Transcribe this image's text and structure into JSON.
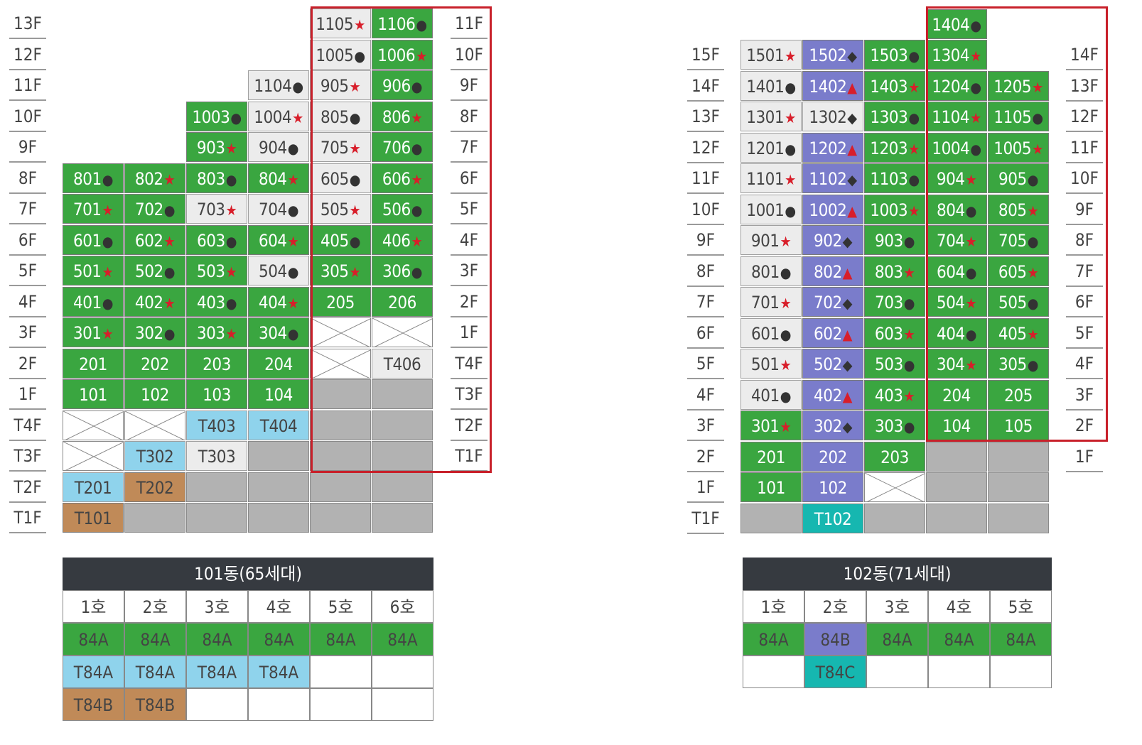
{
  "colors": {
    "g": "#3aa640",
    "w": "#ececec",
    "p": "#7a7ccb",
    "b": "#8fd3ec",
    "t": "#16b7b0",
    "o": "#c08a58",
    "s": "#b2b2b2",
    "red": "#d81e2a"
  },
  "building101": {
    "left_floors": [
      "13F",
      "12F",
      "11F",
      "10F",
      "9F",
      "8F",
      "7F",
      "6F",
      "5F",
      "4F",
      "3F",
      "2F",
      "1F",
      "T4F",
      "T3F",
      "T2F",
      "T1F"
    ],
    "right_floors": [
      "11F",
      "10F",
      "9F",
      "8F",
      "7F",
      "6F",
      "5F",
      "4F",
      "3F",
      "2F",
      "1F",
      "T4F",
      "T3F",
      "T2F",
      "T1F"
    ],
    "cols": [
      [
        null,
        null,
        null,
        null,
        null,
        {
          "n": "801",
          "m": "dot",
          "c": "g"
        },
        {
          "n": "701",
          "m": "star",
          "c": "g"
        },
        {
          "n": "601",
          "m": "dot",
          "c": "g"
        },
        {
          "n": "501",
          "m": "star",
          "c": "g"
        },
        {
          "n": "401",
          "m": "dot",
          "c": "g"
        },
        {
          "n": "301",
          "m": "star",
          "c": "g"
        },
        {
          "n": "201",
          "c": "g"
        },
        {
          "n": "101",
          "c": "g"
        },
        {
          "c": "x"
        },
        {
          "c": "x"
        },
        {
          "n": "T201",
          "c": "b"
        },
        {
          "n": "T101",
          "c": "o"
        }
      ],
      [
        null,
        null,
        null,
        null,
        null,
        {
          "n": "802",
          "m": "star",
          "c": "g"
        },
        {
          "n": "702",
          "m": "dot",
          "c": "g"
        },
        {
          "n": "602",
          "m": "star",
          "c": "g"
        },
        {
          "n": "502",
          "m": "dot",
          "c": "g"
        },
        {
          "n": "402",
          "m": "star",
          "c": "g"
        },
        {
          "n": "302",
          "m": "dot",
          "c": "g"
        },
        {
          "n": "202",
          "c": "g"
        },
        {
          "n": "102",
          "c": "g"
        },
        {
          "c": "x"
        },
        {
          "n": "T302",
          "c": "b"
        },
        {
          "n": "T202",
          "c": "o"
        },
        {
          "c": "s"
        }
      ],
      [
        null,
        null,
        null,
        {
          "n": "1003",
          "m": "dot",
          "c": "g"
        },
        {
          "n": "903",
          "m": "star",
          "c": "g"
        },
        {
          "n": "803",
          "m": "dot",
          "c": "g"
        },
        {
          "n": "703",
          "m": "star",
          "c": "w"
        },
        {
          "n": "603",
          "m": "dot",
          "c": "g"
        },
        {
          "n": "503",
          "m": "star",
          "c": "g"
        },
        {
          "n": "403",
          "m": "dot",
          "c": "g"
        },
        {
          "n": "303",
          "m": "star",
          "c": "g"
        },
        {
          "n": "203",
          "c": "g"
        },
        {
          "n": "103",
          "c": "g"
        },
        {
          "n": "T403",
          "c": "b"
        },
        {
          "n": "T303",
          "c": "w"
        },
        {
          "c": "s"
        },
        {
          "c": "s"
        }
      ],
      [
        null,
        null,
        {
          "n": "1104",
          "m": "dot",
          "c": "w"
        },
        {
          "n": "1004",
          "m": "star",
          "c": "w"
        },
        {
          "n": "904",
          "m": "dot",
          "c": "w"
        },
        {
          "n": "804",
          "m": "star",
          "c": "g"
        },
        {
          "n": "704",
          "m": "dot",
          "c": "w"
        },
        {
          "n": "604",
          "m": "star",
          "c": "g"
        },
        {
          "n": "504",
          "m": "dot",
          "c": "w"
        },
        {
          "n": "404",
          "m": "star",
          "c": "g"
        },
        {
          "n": "304",
          "m": "dot",
          "c": "g"
        },
        {
          "n": "204",
          "c": "g"
        },
        {
          "n": "104",
          "c": "g"
        },
        {
          "n": "T404",
          "c": "b"
        },
        {
          "c": "s"
        },
        {
          "c": "s"
        },
        {
          "c": "s"
        }
      ],
      [
        {
          "n": "1105",
          "m": "star",
          "c": "w"
        },
        {
          "n": "1005",
          "m": "dot",
          "c": "w"
        },
        {
          "n": "905",
          "m": "star",
          "c": "w"
        },
        {
          "n": "805",
          "m": "dot",
          "c": "w"
        },
        {
          "n": "705",
          "m": "star",
          "c": "w"
        },
        {
          "n": "605",
          "m": "dot",
          "c": "w"
        },
        {
          "n": "505",
          "m": "star",
          "c": "w"
        },
        {
          "n": "405",
          "m": "dot",
          "c": "g"
        },
        {
          "n": "305",
          "m": "star",
          "c": "g"
        },
        {
          "n": "205",
          "c": "g"
        },
        {
          "c": "x"
        },
        {
          "c": "x"
        },
        {
          "c": "s"
        },
        {
          "c": "s"
        },
        {
          "c": "s"
        },
        {
          "c": "s"
        },
        {
          "c": "s"
        }
      ],
      [
        {
          "n": "1106",
          "m": "dot",
          "c": "g"
        },
        {
          "n": "1006",
          "m": "star",
          "c": "g"
        },
        {
          "n": "906",
          "m": "dot",
          "c": "g"
        },
        {
          "n": "806",
          "m": "star",
          "c": "g"
        },
        {
          "n": "706",
          "m": "dot",
          "c": "g"
        },
        {
          "n": "606",
          "m": "star",
          "c": "g"
        },
        {
          "n": "506",
          "m": "dot",
          "c": "g"
        },
        {
          "n": "406",
          "m": "star",
          "c": "g"
        },
        {
          "n": "306",
          "m": "dot",
          "c": "g"
        },
        {
          "n": "206",
          "c": "g"
        },
        {
          "c": "x"
        },
        {
          "n": "T406",
          "c": "w"
        },
        {
          "c": "s"
        },
        {
          "c": "s"
        },
        {
          "c": "s"
        },
        {
          "c": "s"
        },
        {
          "c": "s"
        }
      ]
    ],
    "legend": {
      "title": "101동(65세대)",
      "header": [
        "1호",
        "2호",
        "3호",
        "4호",
        "5호",
        "6호"
      ],
      "rows": [
        [
          {
            "v": "84A",
            "c": "g"
          },
          {
            "v": "84A",
            "c": "g"
          },
          {
            "v": "84A",
            "c": "g"
          },
          {
            "v": "84A",
            "c": "g"
          },
          {
            "v": "84A",
            "c": "g"
          },
          {
            "v": "84A",
            "c": "g"
          }
        ],
        [
          {
            "v": "T84A",
            "c": "b"
          },
          {
            "v": "T84A",
            "c": "b"
          },
          {
            "v": "T84A",
            "c": "b"
          },
          {
            "v": "T84A",
            "c": "b"
          },
          {
            "v": "",
            "c": ""
          },
          {
            "v": "",
            "c": ""
          }
        ],
        [
          {
            "v": "T84B",
            "c": "o"
          },
          {
            "v": "T84B",
            "c": "o"
          },
          {
            "v": "",
            "c": ""
          },
          {
            "v": "",
            "c": ""
          },
          {
            "v": "",
            "c": ""
          },
          {
            "v": "",
            "c": ""
          }
        ]
      ]
    }
  },
  "building102": {
    "left_floors": [
      "15F",
      "14F",
      "13F",
      "12F",
      "11F",
      "10F",
      "9F",
      "8F",
      "7F",
      "6F",
      "5F",
      "4F",
      "3F",
      "2F",
      "1F",
      "T1F"
    ],
    "right_floors": [
      "14F",
      "13F",
      "12F",
      "11F",
      "10F",
      "9F",
      "8F",
      "7F",
      "6F",
      "5F",
      "4F",
      "3F",
      "2F",
      "1F"
    ],
    "cols": [
      [
        null,
        {
          "n": "1501",
          "m": "star",
          "c": "w"
        },
        {
          "n": "1401",
          "m": "dot",
          "c": "w"
        },
        {
          "n": "1301",
          "m": "star",
          "c": "w"
        },
        {
          "n": "1201",
          "m": "dot",
          "c": "w"
        },
        {
          "n": "1101",
          "m": "star",
          "c": "w"
        },
        {
          "n": "1001",
          "m": "dot",
          "c": "w"
        },
        {
          "n": "901",
          "m": "star",
          "c": "w"
        },
        {
          "n": "801",
          "m": "dot",
          "c": "w"
        },
        {
          "n": "701",
          "m": "star",
          "c": "w"
        },
        {
          "n": "601",
          "m": "dot",
          "c": "w"
        },
        {
          "n": "501",
          "m": "star",
          "c": "w"
        },
        {
          "n": "401",
          "m": "dot",
          "c": "w"
        },
        {
          "n": "301",
          "m": "star",
          "c": "g"
        },
        {
          "n": "201",
          "c": "g"
        },
        {
          "n": "101",
          "c": "g"
        },
        {
          "c": "s"
        }
      ],
      [
        null,
        {
          "n": "1502",
          "m": "dia",
          "c": "p"
        },
        {
          "n": "1402",
          "m": "tri",
          "c": "p"
        },
        {
          "n": "1302",
          "m": "dia",
          "c": "w"
        },
        {
          "n": "1202",
          "m": "tri",
          "c": "p"
        },
        {
          "n": "1102",
          "m": "dia",
          "c": "p"
        },
        {
          "n": "1002",
          "m": "tri",
          "c": "p"
        },
        {
          "n": "902",
          "m": "dia",
          "c": "p"
        },
        {
          "n": "802",
          "m": "tri",
          "c": "p"
        },
        {
          "n": "702",
          "m": "dia",
          "c": "p"
        },
        {
          "n": "602",
          "m": "tri",
          "c": "p"
        },
        {
          "n": "502",
          "m": "dia",
          "c": "p"
        },
        {
          "n": "402",
          "m": "tri",
          "c": "p"
        },
        {
          "n": "302",
          "m": "dia",
          "c": "p"
        },
        {
          "n": "202",
          "c": "p"
        },
        {
          "n": "102",
          "c": "p"
        },
        {
          "n": "T102",
          "c": "t"
        }
      ],
      [
        null,
        {
          "n": "1503",
          "m": "dot",
          "c": "g"
        },
        {
          "n": "1403",
          "m": "star",
          "c": "g"
        },
        {
          "n": "1303",
          "m": "dot",
          "c": "g"
        },
        {
          "n": "1203",
          "m": "star",
          "c": "g"
        },
        {
          "n": "1103",
          "m": "dot",
          "c": "g"
        },
        {
          "n": "1003",
          "m": "star",
          "c": "g"
        },
        {
          "n": "903",
          "m": "dot",
          "c": "g"
        },
        {
          "n": "803",
          "m": "star",
          "c": "g"
        },
        {
          "n": "703",
          "m": "dot",
          "c": "g"
        },
        {
          "n": "603",
          "m": "star",
          "c": "g"
        },
        {
          "n": "503",
          "m": "dot",
          "c": "g"
        },
        {
          "n": "403",
          "m": "star",
          "c": "g"
        },
        {
          "n": "303",
          "m": "dot",
          "c": "g"
        },
        {
          "n": "203",
          "c": "g"
        },
        {
          "c": "x"
        },
        {
          "c": "s"
        }
      ],
      [
        {
          "n": "1404",
          "m": "dot",
          "c": "g"
        },
        {
          "n": "1304",
          "m": "star",
          "c": "g"
        },
        {
          "n": "1204",
          "m": "dot",
          "c": "g"
        },
        {
          "n": "1104",
          "m": "star",
          "c": "g"
        },
        {
          "n": "1004",
          "m": "dot",
          "c": "g"
        },
        {
          "n": "904",
          "m": "star",
          "c": "g"
        },
        {
          "n": "804",
          "m": "dot",
          "c": "g"
        },
        {
          "n": "704",
          "m": "star",
          "c": "g"
        },
        {
          "n": "604",
          "m": "dot",
          "c": "g"
        },
        {
          "n": "504",
          "m": "star",
          "c": "g"
        },
        {
          "n": "404",
          "m": "dot",
          "c": "g"
        },
        {
          "n": "304",
          "m": "star",
          "c": "g"
        },
        {
          "n": "204",
          "c": "g"
        },
        {
          "n": "104",
          "c": "g"
        },
        {
          "c": "s"
        },
        {
          "c": "s"
        },
        {
          "c": "s"
        }
      ],
      [
        null,
        null,
        {
          "n": "1205",
          "m": "star",
          "c": "g"
        },
        {
          "n": "1105",
          "m": "dot",
          "c": "g"
        },
        {
          "n": "1005",
          "m": "star",
          "c": "g"
        },
        {
          "n": "905",
          "m": "dot",
          "c": "g"
        },
        {
          "n": "805",
          "m": "star",
          "c": "g"
        },
        {
          "n": "705",
          "m": "dot",
          "c": "g"
        },
        {
          "n": "605",
          "m": "star",
          "c": "g"
        },
        {
          "n": "505",
          "m": "dot",
          "c": "g"
        },
        {
          "n": "405",
          "m": "star",
          "c": "g"
        },
        {
          "n": "305",
          "m": "dot",
          "c": "g"
        },
        {
          "n": "205",
          "c": "g"
        },
        {
          "n": "105",
          "c": "g"
        },
        {
          "c": "s"
        },
        {
          "c": "s"
        },
        {
          "c": "s"
        }
      ]
    ],
    "legend": {
      "title": "102동(71세대)",
      "header": [
        "1호",
        "2호",
        "3호",
        "4호",
        "5호"
      ],
      "rows": [
        [
          {
            "v": "84A",
            "c": "g"
          },
          {
            "v": "84B",
            "c": "p"
          },
          {
            "v": "84A",
            "c": "g"
          },
          {
            "v": "84A",
            "c": "g"
          },
          {
            "v": "84A",
            "c": "g"
          }
        ],
        [
          {
            "v": "",
            "c": ""
          },
          {
            "v": "T84C",
            "c": "t"
          },
          {
            "v": "",
            "c": ""
          },
          {
            "v": "",
            "c": ""
          },
          {
            "v": "",
            "c": ""
          }
        ]
      ]
    }
  }
}
